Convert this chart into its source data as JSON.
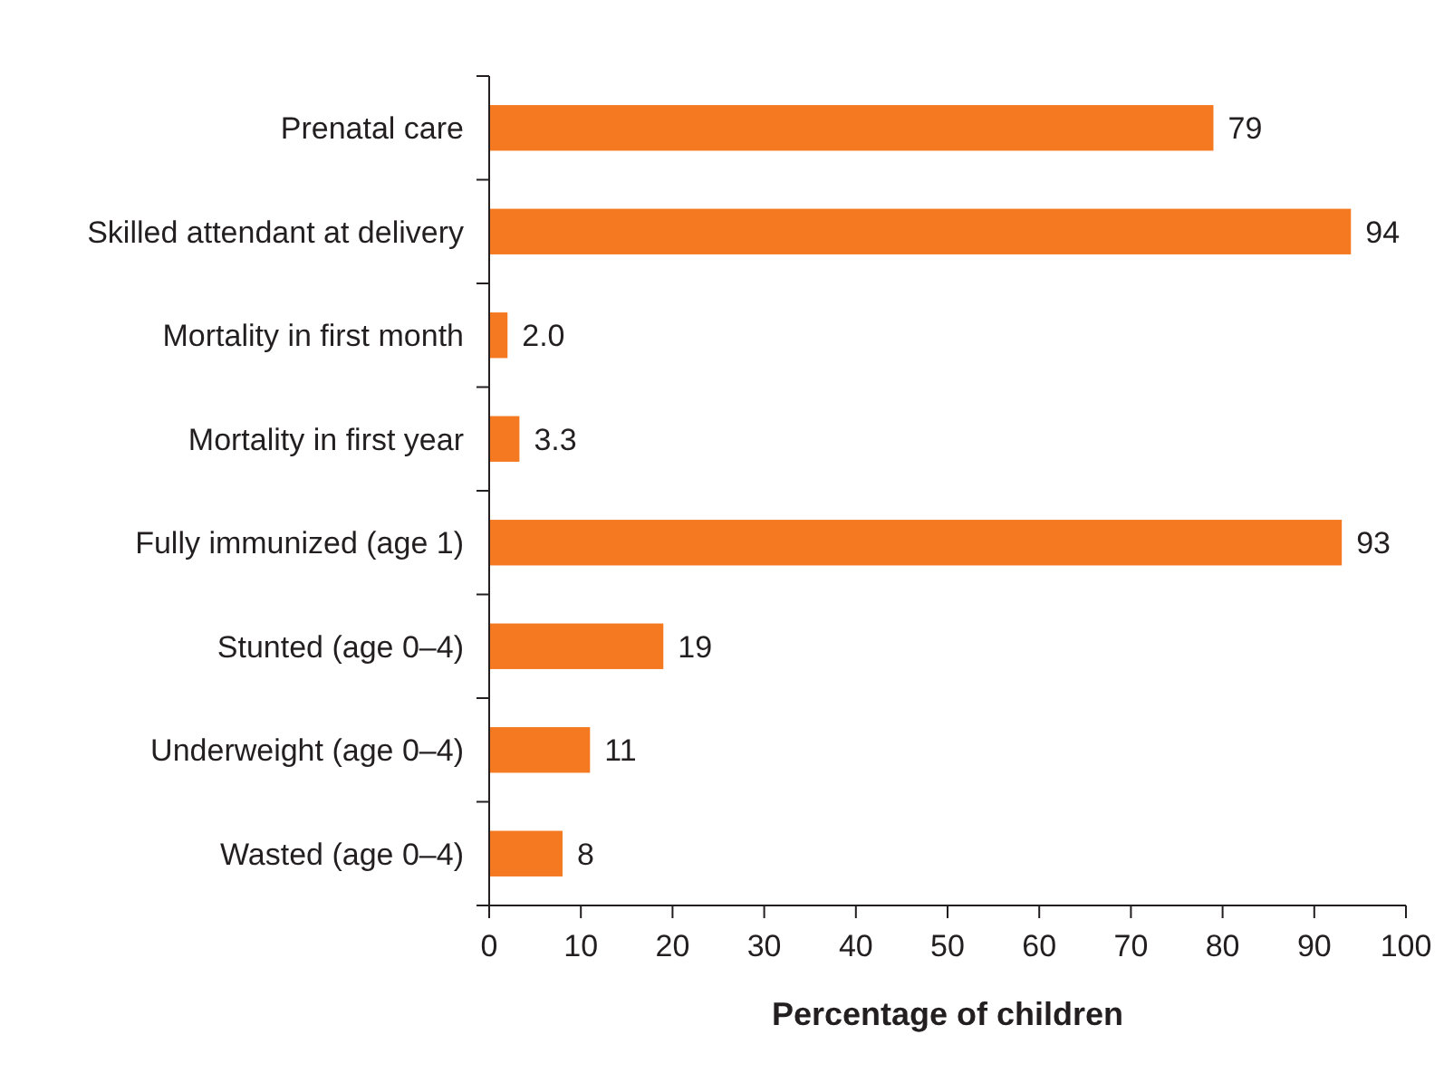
{
  "chart_data": {
    "type": "bar",
    "orientation": "horizontal",
    "xlabel": "Percentage of children",
    "categories": [
      "Prenatal care",
      "Skilled attendant at delivery",
      "Mortality in first month",
      "Mortality in first year",
      "Fully immunized (age 1)",
      "Stunted (age 0–4)",
      "Underweight (age 0–4)",
      "Wasted (age 0–4)"
    ],
    "values": [
      79,
      94,
      2.0,
      3.3,
      93,
      19,
      11,
      8
    ],
    "value_labels": [
      "79",
      "94",
      "2.0",
      "3.3",
      "93",
      "19",
      "11",
      "8"
    ],
    "color": "#f47920",
    "xlim": [
      0,
      100
    ],
    "xticks": [
      0,
      10,
      20,
      30,
      40,
      50,
      60,
      70,
      80,
      90,
      100
    ],
    "grid": false
  }
}
